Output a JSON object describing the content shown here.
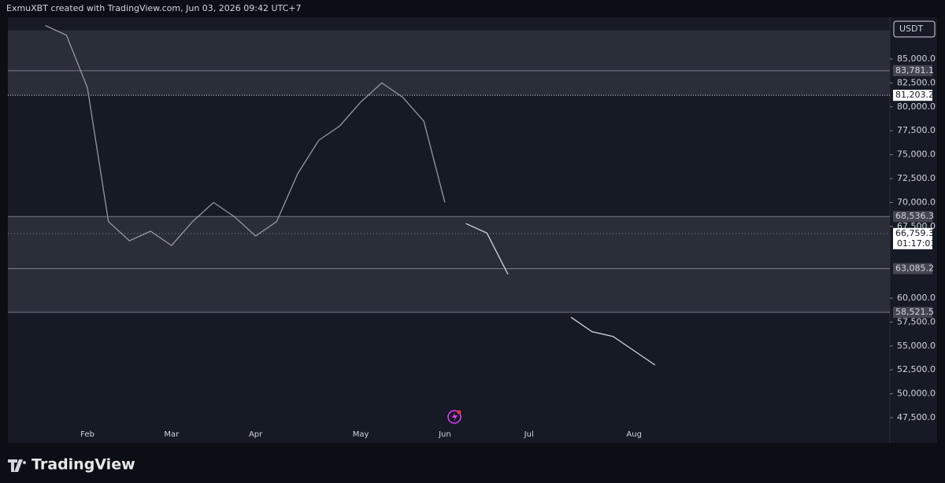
{
  "chart_data": {
    "type": "line",
    "title": "ExmuXBT created with TradingView.com, Jun 03, 2026 09:42 UTC+7",
    "currency": "USDT",
    "footer": "TradingView",
    "categories": [
      null,
      null,
      "Feb",
      null,
      null,
      null,
      "Mar",
      null,
      null,
      null,
      "Apr",
      null,
      null,
      null,
      null,
      "May",
      null,
      null,
      null,
      "Jun",
      null,
      null,
      null,
      "Jul",
      null,
      null,
      null,
      null,
      "Aug",
      null
    ],
    "series": [
      {
        "color": "#9598a1",
        "values": [
          88500,
          87500,
          82000,
          68000,
          66000,
          67000,
          65500,
          68000,
          70000,
          68500,
          66500,
          68000,
          73000,
          76500,
          78000,
          80500,
          82500,
          81000,
          78500,
          70000,
          null,
          null,
          null,
          null,
          null,
          null,
          null,
          null,
          null,
          null
        ]
      },
      {
        "color": "#d1d4dc",
        "values": [
          null,
          null,
          null,
          null,
          null,
          null,
          null,
          null,
          null,
          null,
          null,
          null,
          null,
          null,
          null,
          null,
          null,
          null,
          null,
          null,
          67800,
          66800,
          62500,
          null,
          null,
          58000,
          56500,
          56000,
          54500,
          53000
        ]
      }
    ],
    "ylim": [
      44870,
      89360
    ],
    "yticks": [
      {
        "value": 85000,
        "label": "85,000.0"
      },
      {
        "value": 82500,
        "label": "82,500.0"
      },
      {
        "value": 80000,
        "label": "80,000.0"
      },
      {
        "value": 77500,
        "label": "77,500.0"
      },
      {
        "value": 75000,
        "label": "75,000.0"
      },
      {
        "value": 72500,
        "label": "72,500.0"
      },
      {
        "value": 70000,
        "label": "70,000.0"
      },
      {
        "value": 67500,
        "label": "67,500.0"
      },
      {
        "value": 60000,
        "label": "60,000.0"
      },
      {
        "value": 57500,
        "label": "57,500.0"
      },
      {
        "value": 55000,
        "label": "55,000.0"
      },
      {
        "value": 52500,
        "label": "52,500.0"
      },
      {
        "value": 50000,
        "label": "50,000.0"
      },
      {
        "value": 47500,
        "label": "47,500.0"
      }
    ],
    "zones": [
      [
        81203.2,
        88000
      ],
      [
        58521.5,
        68536.3
      ]
    ],
    "zone_color": "#2a2e39",
    "levels": [
      {
        "value": 83781.1,
        "label": "83,781.1",
        "color": "#434651"
      },
      {
        "value": 81203.2,
        "label": "81,203.2",
        "color": "#ffffff"
      },
      {
        "value": 68536.3,
        "label": "68,536.3",
        "color": "#434651"
      },
      {
        "value": 63085.2,
        "label": "63,085.2",
        "color": "#434651"
      },
      {
        "value": 58521.5,
        "label": "58,521.5",
        "color": "#434651"
      }
    ],
    "last_price": {
      "value": 66759.3,
      "label": "66,759.3"
    },
    "countdown": "01:17:03",
    "grid": false
  }
}
